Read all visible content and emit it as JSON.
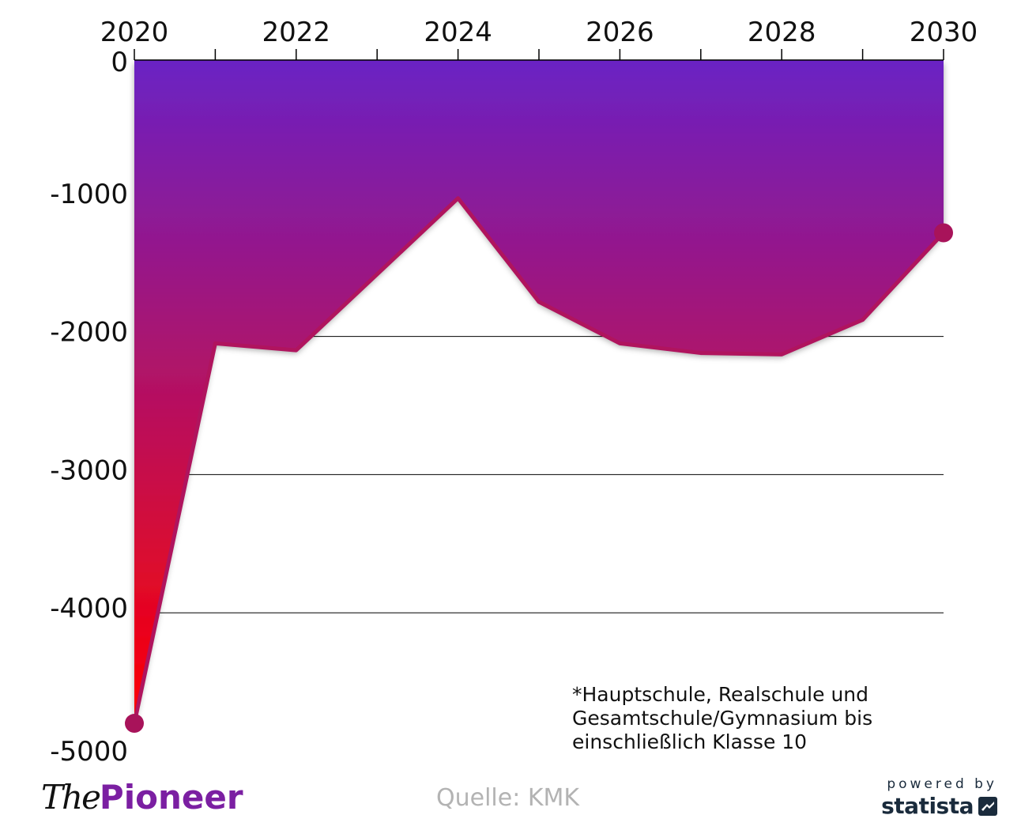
{
  "chart_data": {
    "type": "area",
    "x": [
      2020,
      2021,
      2022,
      2023,
      2024,
      2025,
      2026,
      2027,
      2028,
      2029,
      2030
    ],
    "series": [
      {
        "values": [
          -4800,
          -2050,
          -2100,
          -1550,
          -1000,
          -1750,
          -2050,
          -2120,
          -2130,
          -1880,
          -1250
        ]
      }
    ],
    "x_ticks": [
      "2020",
      "2022",
      "2024",
      "2026",
      "2028",
      "2030"
    ],
    "y_ticks": [
      "0",
      "-1000",
      "-2000",
      "-3000",
      "-4000",
      "-5000"
    ],
    "y_tick_values": [
      0,
      -1000,
      -2000,
      -3000,
      -4000,
      -5000
    ],
    "xlim": [
      2020,
      2030
    ],
    "ylim": [
      -5000,
      0
    ],
    "x_axis_position": "top",
    "grid": true,
    "colors": {
      "gradient_top": "#6a22c4",
      "gradient_bottom": "#ff0000",
      "line": "#b0145e",
      "marker": "#a8135a",
      "gridline": "#000000"
    }
  },
  "footnote": "*Hauptschule, Realschule und\nGesamtschule/Gymnasium bis\neinschließlich Klasse 10",
  "branding": {
    "logo_the": "The",
    "logo_pioneer": "Pioneer",
    "source": "Quelle: KMK",
    "powered_by": "powered by",
    "statista": "statista"
  }
}
